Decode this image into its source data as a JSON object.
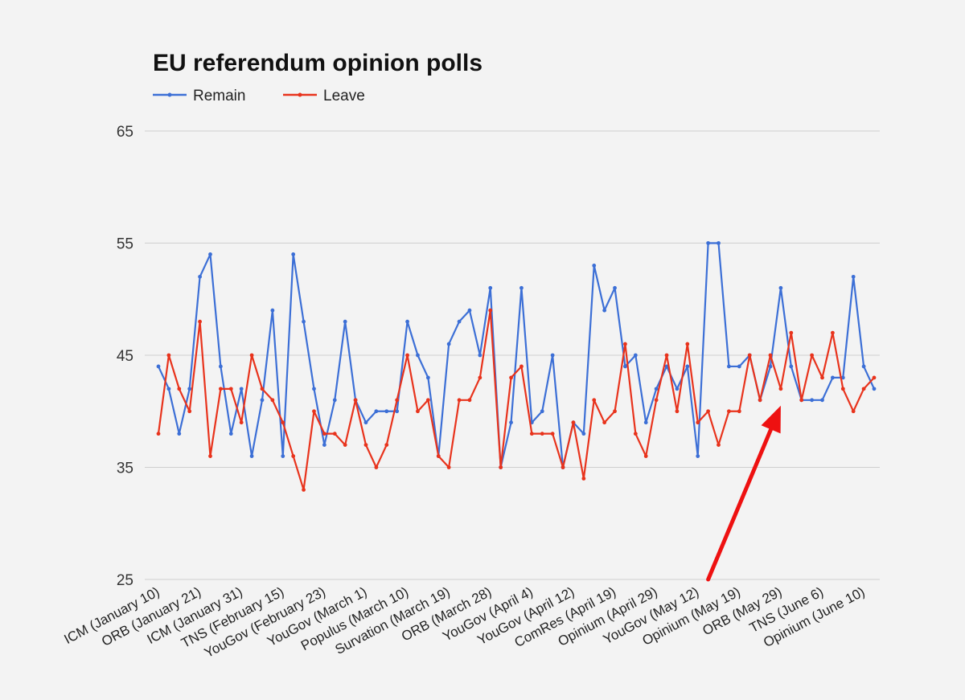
{
  "chart_data": {
    "type": "line",
    "title": "EU referendum opinion polls",
    "xlabel": "",
    "ylabel": "",
    "ylim": [
      25,
      65
    ],
    "yticks": [
      25,
      35,
      45,
      55,
      65
    ],
    "grid": true,
    "legend_placement": "top-left",
    "x_tick_labels": [
      "ICM (January 10)",
      "ORB (January 21)",
      "ICM (January 31)",
      "TNS (February 15)",
      "YouGov (February 23)",
      "YouGov (March 1)",
      "Populus (March 10)",
      "Survation (March 19)",
      "ORB (March 28)",
      "YouGov (April 4)",
      "YouGov (April 12)",
      "ComRes (April 19)",
      "Opinium (April 29)",
      "YouGov (May 12)",
      "Opinium (May 19)",
      "ORB (May 29)",
      "TNS (June 6)",
      "Opinium (June 10)"
    ],
    "series": [
      {
        "name": "Remain",
        "color": "#3c6fd6",
        "values": [
          44,
          42,
          38,
          42,
          52,
          54,
          44,
          38,
          42,
          36,
          41,
          49,
          36,
          54,
          48,
          42,
          37,
          41,
          48,
          41,
          39,
          40,
          40,
          40,
          48,
          45,
          43,
          36,
          46,
          48,
          49,
          45,
          51,
          35,
          39,
          51,
          39,
          40,
          45,
          35,
          39,
          38,
          53,
          49,
          51,
          44,
          45,
          39,
          42,
          44,
          42,
          44,
          36,
          55,
          55,
          44,
          44,
          45,
          41,
          44,
          51,
          44,
          41,
          41,
          41,
          43,
          43,
          52,
          44,
          42
        ]
      },
      {
        "name": "Leave",
        "color": "#e8331c",
        "values": [
          38,
          45,
          42,
          40,
          48,
          36,
          42,
          42,
          39,
          45,
          42,
          41,
          39,
          36,
          33,
          40,
          38,
          38,
          37,
          41,
          37,
          35,
          37,
          41,
          45,
          40,
          41,
          36,
          35,
          41,
          41,
          43,
          49,
          35,
          43,
          44,
          38,
          38,
          38,
          35,
          39,
          34,
          41,
          39,
          40,
          46,
          38,
          36,
          41,
          45,
          40,
          46,
          39,
          40,
          37,
          40,
          40,
          45,
          41,
          45,
          42,
          47,
          41,
          45,
          43,
          47,
          42,
          40,
          42,
          43
        ]
      }
    ],
    "annotation": {
      "type": "arrow",
      "color": "#ee1111",
      "target_poll_index": 60,
      "target_value": 40.5,
      "tail_poll_index": 53,
      "tail_value": 25
    }
  }
}
